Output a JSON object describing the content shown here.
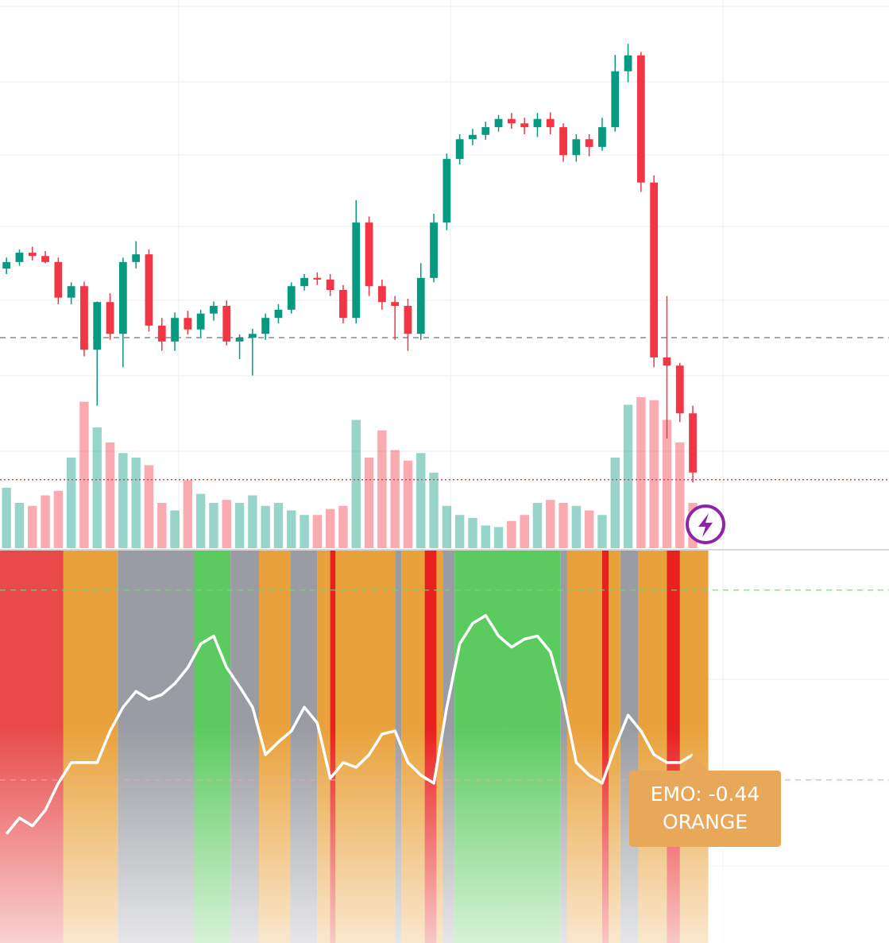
{
  "chart_data": [
    {
      "type": "candlestick",
      "open": [
        51.0,
        52.2,
        53.9,
        53.3,
        52.2,
        45.7,
        47.8,
        36.2,
        44.9,
        39.1,
        52.2,
        53.6,
        40.6,
        37.7,
        42.0,
        39.9,
        42.8,
        44.2,
        37.7,
        38.4,
        39.1,
        42.0,
        43.5,
        47.8,
        49.3,
        49.0,
        47.1,
        42.0,
        59.4,
        47.8,
        44.9,
        44.2,
        39.1,
        49.3,
        59.4,
        71.0,
        74.6,
        75.4,
        76.8,
        78.3,
        77.5,
        76.8,
        78.3,
        76.8,
        71.7,
        74.6,
        73.2,
        76.8,
        87.0,
        89.9,
        66.7,
        34.8,
        33.3,
        24.6
      ],
      "high": [
        53.0,
        54.5,
        55.0,
        54.2,
        53.0,
        48.5,
        48.6,
        45.0,
        46.5,
        53.0,
        56.0,
        54.5,
        42.0,
        43.0,
        43.3,
        43.5,
        45.0,
        45.2,
        39.0,
        40.0,
        42.8,
        44.5,
        48.5,
        50.0,
        50.3,
        50.0,
        48.0,
        63.5,
        60.5,
        49.0,
        46.0,
        45.5,
        52.0,
        61.0,
        72.0,
        75.5,
        76.5,
        77.8,
        79.0,
        79.4,
        78.5,
        79.4,
        79.5,
        77.5,
        75.5,
        75.5,
        78.5,
        90.0,
        92.0,
        90.5,
        68.0,
        46.0,
        33.8,
        26.0
      ],
      "low": [
        50.0,
        51.5,
        52.5,
        52.0,
        44.5,
        44.5,
        35.0,
        26.0,
        38.0,
        33.0,
        51.0,
        39.5,
        36.0,
        36.0,
        39.0,
        38.5,
        41.5,
        37.0,
        34.5,
        31.5,
        38.0,
        41.0,
        42.8,
        47.0,
        48.0,
        46.0,
        41.0,
        41.0,
        46.0,
        43.5,
        38.0,
        36.0,
        38.0,
        48.5,
        58.0,
        70.0,
        73.5,
        74.5,
        76.0,
        76.5,
        75.5,
        75.0,
        75.5,
        70.5,
        70.5,
        71.5,
        72.5,
        76.0,
        85.0,
        65.0,
        33.0,
        20.0,
        23.0,
        12.0
      ],
      "close": [
        52.2,
        53.9,
        53.3,
        52.2,
        45.7,
        47.8,
        36.2,
        44.9,
        39.1,
        52.2,
        53.6,
        40.6,
        37.7,
        42.0,
        39.9,
        42.8,
        44.2,
        37.7,
        38.4,
        39.1,
        42.0,
        43.5,
        47.8,
        49.3,
        49.0,
        47.1,
        42.0,
        59.4,
        47.8,
        44.9,
        44.2,
        39.1,
        49.3,
        59.4,
        71.0,
        74.6,
        75.4,
        76.8,
        78.3,
        77.5,
        76.8,
        78.3,
        76.8,
        71.7,
        74.6,
        73.2,
        76.8,
        87.0,
        89.9,
        66.7,
        34.8,
        33.3,
        24.6,
        13.8
      ],
      "volume": [
        40,
        30,
        28,
        35,
        38,
        60,
        97,
        80,
        70,
        63,
        60,
        55,
        30,
        25,
        45,
        36,
        30,
        32,
        30,
        35,
        28,
        30,
        25,
        22,
        22,
        26,
        28,
        85,
        60,
        78,
        65,
        58,
        63,
        50,
        28,
        22,
        20,
        15,
        14,
        18,
        22,
        30,
        32,
        30,
        28,
        25,
        22,
        60,
        95,
        100,
        98,
        85,
        70,
        30
      ],
      "up_color": "#089981",
      "down_color": "#f23645",
      "xlim": [
        0,
        68.65
      ],
      "ylim": [
        0,
        100
      ],
      "volume_lim": [
        0,
        100
      ],
      "hlines": [
        {
          "value": 38.4,
          "color": "#888888",
          "style": "dashed"
        },
        {
          "value": 12.5,
          "color": "#f23645",
          "style": "dotted"
        }
      ]
    },
    {
      "type": "line",
      "values": [
        -0.94,
        -0.84,
        -0.89,
        -0.79,
        -0.62,
        -0.49,
        -0.49,
        -0.49,
        -0.29,
        -0.14,
        -0.04,
        -0.09,
        -0.06,
        0.01,
        0.11,
        0.26,
        0.31,
        0.11,
        -0.01,
        -0.14,
        -0.44,
        -0.36,
        -0.29,
        -0.14,
        -0.24,
        -0.59,
        -0.49,
        -0.52,
        -0.44,
        -0.31,
        -0.29,
        -0.49,
        -0.57,
        -0.62,
        -0.14,
        0.26,
        0.39,
        0.44,
        0.31,
        0.24,
        0.29,
        0.31,
        0.21,
        -0.09,
        -0.49,
        -0.57,
        -0.62,
        -0.39,
        -0.19,
        -0.29,
        -0.44,
        -0.49,
        -0.49,
        -0.44
      ],
      "color": "#ffffff",
      "xlim": [
        0,
        68.65
      ],
      "ylim": [
        -1.63,
        0.85
      ],
      "bands": [
        {
          "start": 0,
          "end": 4.9,
          "color": "#e84a4a"
        },
        {
          "start": 4.9,
          "end": 9.1,
          "color": "#e9a23b"
        },
        {
          "start": 9.1,
          "end": 15.0,
          "color": "#9a9ca3"
        },
        {
          "start": 15.0,
          "end": 17.8,
          "color": "#5ccb5f"
        },
        {
          "start": 17.8,
          "end": 20.0,
          "color": "#9a9ca3"
        },
        {
          "start": 20.0,
          "end": 22.4,
          "color": "#e9a23b"
        },
        {
          "start": 22.4,
          "end": 24.5,
          "color": "#9a9ca3"
        },
        {
          "start": 24.5,
          "end": 30.5,
          "color": "#e9a23b"
        },
        {
          "start": 30.5,
          "end": 31.0,
          "color": "#9a9ca3"
        },
        {
          "start": 31.0,
          "end": 34.2,
          "color": "#e9a23b"
        },
        {
          "start": 34.2,
          "end": 35.1,
          "color": "#9a9ca3"
        },
        {
          "start": 35.1,
          "end": 43.3,
          "color": "#5ccb5f"
        },
        {
          "start": 43.3,
          "end": 43.8,
          "color": "#9a9ca3"
        },
        {
          "start": 43.8,
          "end": 47.9,
          "color": "#e9a23b"
        },
        {
          "start": 47.9,
          "end": 49.3,
          "color": "#9a9ca3"
        },
        {
          "start": 49.3,
          "end": 54.7,
          "color": "#e9a23b"
        },
        {
          "start": 25.5,
          "end": 25.9,
          "color": "#e8201e"
        },
        {
          "start": 32.8,
          "end": 33.7,
          "color": "#e8201e"
        },
        {
          "start": 46.5,
          "end": 47.0,
          "color": "#e8201e"
        },
        {
          "start": 51.5,
          "end": 52.5,
          "color": "#e8201e"
        }
      ],
      "hlines": [
        {
          "value": 0.6,
          "color": "#7ed07e",
          "style": "dashed"
        },
        {
          "value": -0.6,
          "color": "#f2a0a8",
          "style": "dashed"
        }
      ],
      "tooltip": {
        "label": "EMO: -0.44",
        "state": "ORANGE",
        "color": "#e9a75a"
      }
    }
  ]
}
